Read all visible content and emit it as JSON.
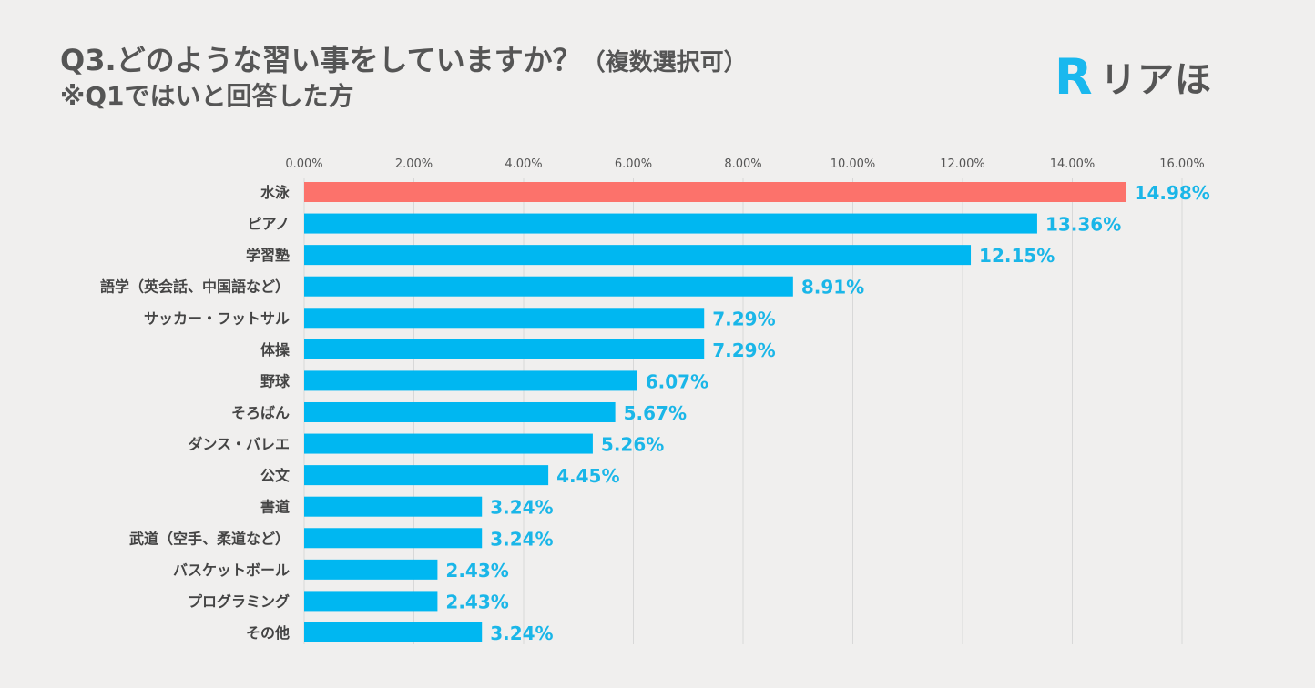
{
  "header": {
    "title": "Q3.どのような習い事をしていますか？",
    "title_suffix": "（複数選択可）",
    "subtitle": "※Q1ではいと回答した方"
  },
  "logo": {
    "mark_letter": "R",
    "text": "リアほ",
    "mark_color": "#1ab8ee",
    "icon": "r-logo-icon"
  },
  "chart_data": {
    "type": "bar",
    "orientation": "horizontal",
    "categories": [
      "水泳",
      "ピアノ",
      "学習塾",
      "語学（英会話、中国語など）",
      "サッカー・フットサル",
      "体操",
      "野球",
      "そろばん",
      "ダンス・バレエ",
      "公文",
      "書道",
      "武道（空手、柔道など）",
      "バスケットボール",
      "プログラミング",
      "その他"
    ],
    "values": [
      14.98,
      13.36,
      12.15,
      8.91,
      7.29,
      7.29,
      6.07,
      5.67,
      5.26,
      4.45,
      3.24,
      3.24,
      2.43,
      2.43,
      3.24
    ],
    "value_labels": [
      "14.98%",
      "13.36%",
      "12.15%",
      "8.91%",
      "7.29%",
      "7.29%",
      "6.07%",
      "5.67%",
      "5.26%",
      "4.45%",
      "3.24%",
      "3.24%",
      "2.43%",
      "2.43%",
      "3.24%"
    ],
    "xticks": [
      0,
      2,
      4,
      6,
      8,
      10,
      12,
      14,
      16
    ],
    "xtick_labels": [
      "0.00%",
      "2.00%",
      "4.00%",
      "6.00%",
      "8.00%",
      "10.00%",
      "12.00%",
      "14.00%",
      "16.00%"
    ],
    "xlim": [
      0,
      16
    ],
    "x_axis_position": "top",
    "grid": true,
    "colors": {
      "bar": "#00b7f1",
      "highlight_bar": "#fc726b",
      "value_label": "#1ab6e8"
    },
    "highlight_index": 0
  }
}
